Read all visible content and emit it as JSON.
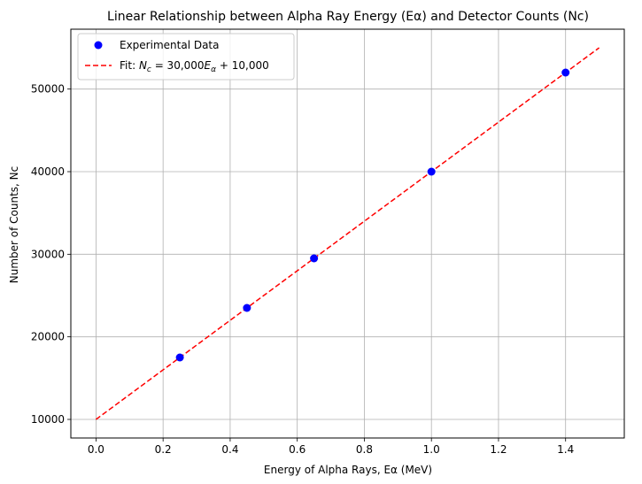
{
  "chart_data": {
    "type": "scatter",
    "title": "Linear Relationship between Alpha Ray Energy (Eα) and Detector Counts (Nc)",
    "xlabel": "Energy of Alpha Rays, Eα (MeV)",
    "ylabel": "Number of Counts, Nc",
    "xlim": [
      -0.075,
      1.575
    ],
    "ylim": [
      7750,
      57250
    ],
    "xticks": [
      0.0,
      0.2,
      0.4,
      0.6,
      0.8,
      1.0,
      1.2,
      1.4
    ],
    "xtick_labels": [
      "0.0",
      "0.2",
      "0.4",
      "0.6",
      "0.8",
      "1.0",
      "1.2",
      "1.4"
    ],
    "yticks": [
      10000,
      20000,
      30000,
      40000,
      50000
    ],
    "ytick_labels": [
      "10000",
      "20000",
      "30000",
      "40000",
      "50000"
    ],
    "grid": true,
    "legend_position": "top-left",
    "series": [
      {
        "name": "Experimental Data",
        "kind": "scatter",
        "color": "#0000ff",
        "x": [
          0.25,
          0.45,
          0.65,
          1.0,
          1.4
        ],
        "y": [
          17500,
          23500,
          29500,
          40000,
          52000
        ]
      },
      {
        "name": "Fit: N_c = 30,000E_α + 10,000",
        "kind": "dashed-line",
        "color": "#ff0000",
        "x": [
          0.0,
          1.5
        ],
        "y": [
          10000,
          55000
        ]
      }
    ],
    "legend": {
      "scatter_label": "Experimental Data",
      "fit_prefix": "Fit: ",
      "fit_N": "N",
      "fit_Nsub": "c",
      "fit_eq": " = 30,000",
      "fit_E": "E",
      "fit_Esub": "α",
      "fit_tail": " + 10,000"
    }
  }
}
